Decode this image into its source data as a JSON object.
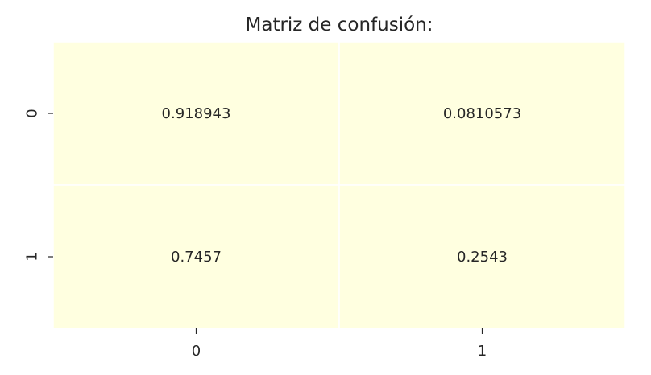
{
  "chart_data": {
    "type": "heatmap",
    "title": "Matriz de confusión:",
    "xlabel": "",
    "ylabel": "",
    "x_categories": [
      "0",
      "1"
    ],
    "y_categories": [
      "0",
      "1"
    ],
    "values": [
      [
        0.918943,
        0.0810573
      ],
      [
        0.7457,
        0.2543
      ]
    ],
    "value_labels": [
      [
        "0.918943",
        "0.0810573"
      ],
      [
        "0.7457",
        "0.2543"
      ]
    ],
    "cell_color": "#ffffe0",
    "grid_line_color": "#ffffff",
    "colorbar": false,
    "grid": true
  }
}
